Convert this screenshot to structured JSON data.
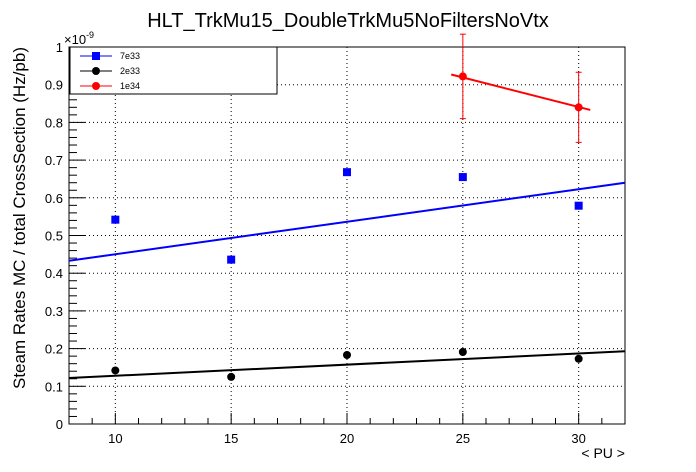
{
  "chart_data": {
    "type": "scatter",
    "title": "HLT_TrkMu15_DoubleTrkMu5NoFiltersNoVtx",
    "xlabel": "< PU >",
    "ylabel": "Steam Rates MC / total CrossSection (Hz/pb)",
    "y_exponent_label": "×10",
    "y_exponent_power": "-9",
    "xlim": [
      8,
      32
    ],
    "ylim": [
      0,
      1
    ],
    "x_ticks": [
      10,
      15,
      20,
      25,
      30
    ],
    "y_ticks": [
      0,
      0.1,
      0.2,
      0.3,
      0.4,
      0.5,
      0.6,
      0.7,
      0.8,
      0.9,
      1
    ],
    "x_tick_labels": [
      "10",
      "15",
      "20",
      "25",
      "30"
    ],
    "y_tick_labels": [
      "0",
      "0.1",
      "0.2",
      "0.3",
      "0.4",
      "0.5",
      "0.6",
      "0.7",
      "0.8",
      "0.9",
      "1"
    ],
    "grid": true,
    "legend_position": "top-left",
    "series": [
      {
        "name": "7e33",
        "color": "#0000ff",
        "marker": "square",
        "x": [
          10,
          15,
          20,
          25,
          30
        ],
        "y": [
          0.542,
          0.436,
          0.668,
          0.655,
          0.579
        ],
        "fit": {
          "x": [
            8,
            32
          ],
          "y": [
            0.433,
            0.64
          ]
        }
      },
      {
        "name": "2e33",
        "color": "#000000",
        "marker": "circle",
        "x": [
          10,
          15,
          20,
          25,
          30
        ],
        "y": [
          0.142,
          0.125,
          0.183,
          0.191,
          0.173
        ],
        "fit": {
          "x": [
            8,
            32
          ],
          "y": [
            0.122,
            0.193
          ]
        }
      },
      {
        "name": "1e34",
        "color": "#ff0000",
        "marker": "circle",
        "x": [
          25,
          30
        ],
        "y": [
          0.922,
          0.84
        ],
        "yerr": [
          0.112,
          0.093
        ],
        "fit": {
          "x": [
            24.5,
            30.5
          ],
          "y": [
            0.927,
            0.833
          ]
        }
      }
    ]
  }
}
